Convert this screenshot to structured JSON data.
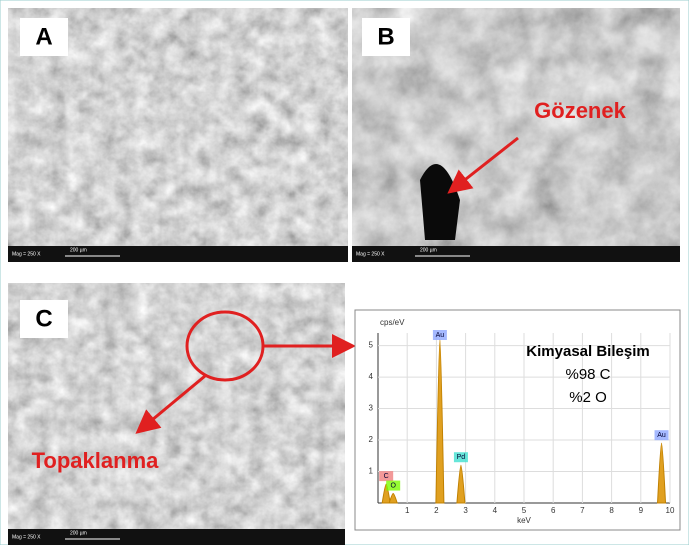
{
  "panels": [
    {
      "label": "A",
      "info": {
        "mag": "Mag = 250 X",
        "scale": "200 µm"
      }
    },
    {
      "label": "B",
      "annotation": "Gözenek",
      "info": {
        "mag": "Mag = 250 X",
        "scale": "200 µm"
      }
    },
    {
      "label": "C",
      "annotation": "Topaklanma",
      "info": {
        "mag": "Mag = 250 X",
        "scale": "200 µm"
      }
    }
  ],
  "spectrum": {
    "y_label": "cps/eV",
    "x_label": "keV",
    "xlim": [
      0,
      10
    ],
    "ylim": [
      0,
      5.4
    ],
    "xticks": [
      1,
      2,
      3,
      4,
      5,
      6,
      7,
      8,
      9,
      10
    ],
    "yticks": [
      1,
      2,
      3,
      4,
      5
    ],
    "peaks": [
      {
        "name": "C",
        "x": 0.28,
        "height": 0.6
      },
      {
        "name": "O",
        "x": 0.52,
        "height": 0.3
      },
      {
        "name": "Au",
        "x": 2.12,
        "height": 5.2
      },
      {
        "name": "Pd",
        "x": 2.84,
        "height": 1.2
      },
      {
        "name": "Au",
        "x": 9.71,
        "height": 1.9
      }
    ],
    "legend": {
      "title": "Kimyasal Bileşim",
      "lines": [
        "%98 C",
        "%2 O"
      ]
    }
  }
}
